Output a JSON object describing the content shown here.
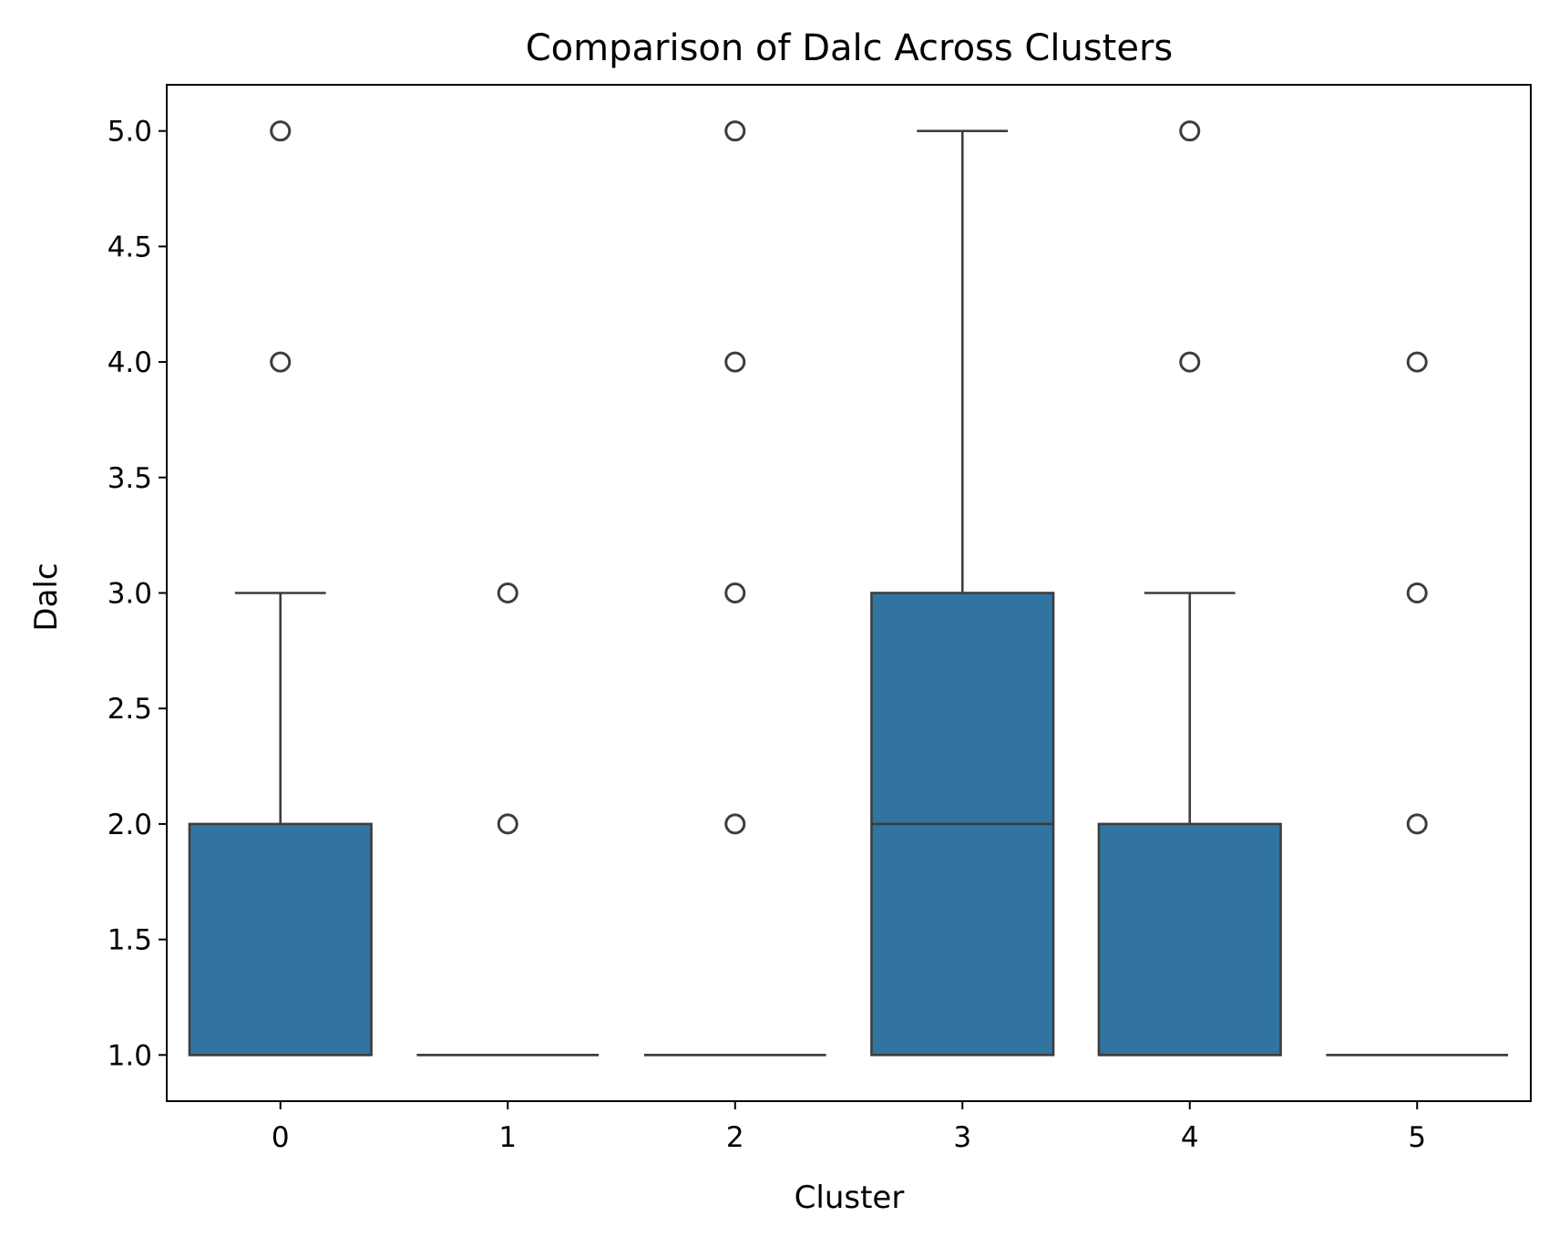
{
  "chart_data": {
    "type": "box",
    "title": "Comparison of Dalc Across Clusters",
    "xlabel": "Cluster",
    "ylabel": "Dalc",
    "categories": [
      "0",
      "1",
      "2",
      "3",
      "4",
      "5"
    ],
    "ylim": [
      0.8,
      5.2
    ],
    "yticks": [
      "1.0",
      "1.5",
      "2.0",
      "2.5",
      "3.0",
      "3.5",
      "4.0",
      "4.5",
      "5.0"
    ],
    "boxes": [
      {
        "category": "0",
        "q1": 1,
        "median": 1,
        "q3": 2,
        "whisker_low": 1,
        "whisker_high": 3,
        "outliers": [
          4,
          5
        ]
      },
      {
        "category": "1",
        "q1": 1,
        "median": 1,
        "q3": 1,
        "whisker_low": 1,
        "whisker_high": 1,
        "outliers": [
          2,
          3
        ]
      },
      {
        "category": "2",
        "q1": 1,
        "median": 1,
        "q3": 1,
        "whisker_low": 1,
        "whisker_high": 1,
        "outliers": [
          2,
          3,
          4,
          5
        ]
      },
      {
        "category": "3",
        "q1": 1,
        "median": 2,
        "q3": 3,
        "whisker_low": 1,
        "whisker_high": 5,
        "outliers": []
      },
      {
        "category": "4",
        "q1": 1,
        "median": 1,
        "q3": 2,
        "whisker_low": 1,
        "whisker_high": 3,
        "outliers": [
          4,
          5
        ]
      },
      {
        "category": "5",
        "q1": 1,
        "median": 1,
        "q3": 1,
        "whisker_low": 1,
        "whisker_high": 1,
        "outliers": [
          2,
          3,
          4
        ]
      }
    ],
    "box_color": "#3274a1",
    "line_color": "#3d3d3d",
    "grid": false,
    "legend": "none"
  }
}
